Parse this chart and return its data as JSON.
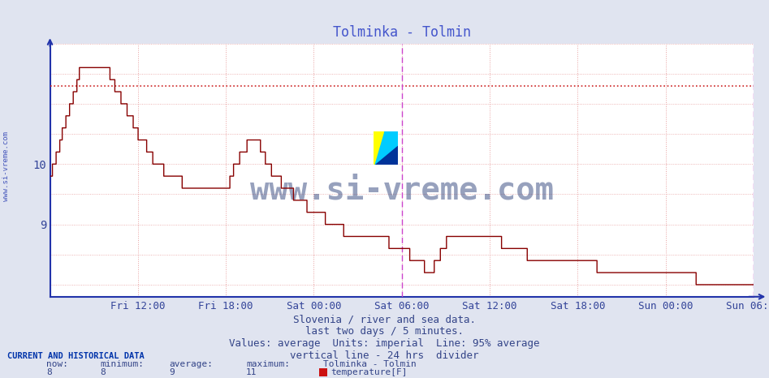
{
  "title": "Tolminka - Tolmin",
  "title_color": "#4455cc",
  "bg_color": "#e0e4f0",
  "plot_bg_color": "#ffffff",
  "grid_color": "#e8a0a0",
  "line_color": "#880000",
  "avg_line_color": "#cc2222",
  "avg_line_value": 11.3,
  "divider_color": "#cc44cc",
  "ylim": [
    7.8,
    12.0
  ],
  "yticks": [
    9,
    10
  ],
  "xlabel_color": "#334499",
  "ylabel_color": "#334499",
  "x_labels": [
    "Fri 12:00",
    "Fri 18:00",
    "Sat 00:00",
    "Sat 06:00",
    "Sat 12:00",
    "Sat 18:00",
    "Sun 00:00",
    "Sun 06:00"
  ],
  "footer_line1": "Slovenia / river and sea data.",
  "footer_line2": "last two days / 5 minutes.",
  "footer_line3": "Values: average  Units: imperial  Line: 95% average",
  "footer_line4": "vertical line - 24 hrs  divider",
  "current_label": "CURRENT AND HISTORICAL DATA",
  "now_val": "8",
  "min_val": "8",
  "avg_val": "9",
  "max_val": "11",
  "station": "Tolminka - Tolmin",
  "param": "temperature[F]",
  "watermark": "www.si-vreme.com",
  "watermark_color": "#1a2f6e",
  "axis_color": "#2233aa",
  "footer_color": "#334488"
}
